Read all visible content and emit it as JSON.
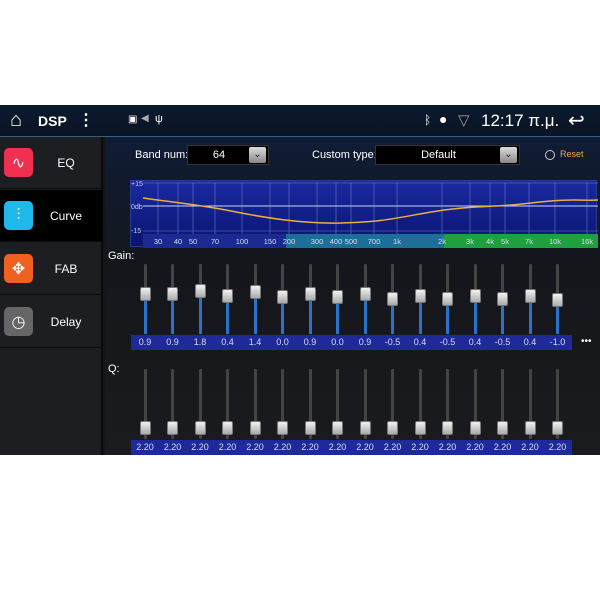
{
  "status": {
    "title": "DSP",
    "time": "12:17 π.μ.",
    "icons": [
      "home-icon",
      "more-vert-icon",
      "image-icon",
      "mute-icon",
      "usb-icon",
      "bluetooth-icon",
      "location-icon",
      "wifi-icon",
      "back-icon"
    ]
  },
  "sidebar": {
    "items": [
      {
        "label": "EQ",
        "icon": "eq-wave-icon",
        "color": "#f03050",
        "glyph": "∿"
      },
      {
        "label": "Curve",
        "icon": "sliders-icon",
        "color": "#20b8e8",
        "glyph": "⫶",
        "selected": true
      },
      {
        "label": "FAB",
        "icon": "fab-arrows-icon",
        "color": "#f06020",
        "glyph": "✥"
      },
      {
        "label": "Delay",
        "icon": "clock-icon",
        "color": "#666666",
        "glyph": "◷"
      }
    ]
  },
  "controls": {
    "band_num_label": "Band num:",
    "band_num_value": "64",
    "custom_type_label": "Custom type:",
    "custom_type_value": "Default",
    "reset_label": "Reset"
  },
  "graph": {
    "y_labels": [
      "+15",
      "0db",
      "-15"
    ],
    "freq_labels": [
      "30",
      "40",
      "50",
      "70",
      "100",
      "150",
      "200",
      "300",
      "400",
      "500",
      "700",
      "1k",
      "2k",
      "3k",
      "4k",
      "5k",
      "7k",
      "10k",
      "16k"
    ],
    "colors": {
      "low": "#1a2a90",
      "mid": "#1e6e9a",
      "high": "#1fa040",
      "curve": "#e8b040"
    }
  },
  "gain": {
    "label": "Gain:",
    "values": [
      "0.9",
      "0.9",
      "1.8",
      "0.4",
      "1.4",
      "0.0",
      "0.9",
      "0.0",
      "0.9",
      "-0.5",
      "0.4",
      "-0.5",
      "0.4",
      "-0.5",
      "0.4",
      "-1.0"
    ],
    "more": "•••"
  },
  "q": {
    "label": "Q:",
    "values": [
      "2.20",
      "2.20",
      "2.20",
      "2.20",
      "2.20",
      "2.20",
      "2.20",
      "2.20",
      "2.20",
      "2.20",
      "2.20",
      "2.20",
      "2.20",
      "2.20",
      "2.20",
      "2.20"
    ]
  }
}
